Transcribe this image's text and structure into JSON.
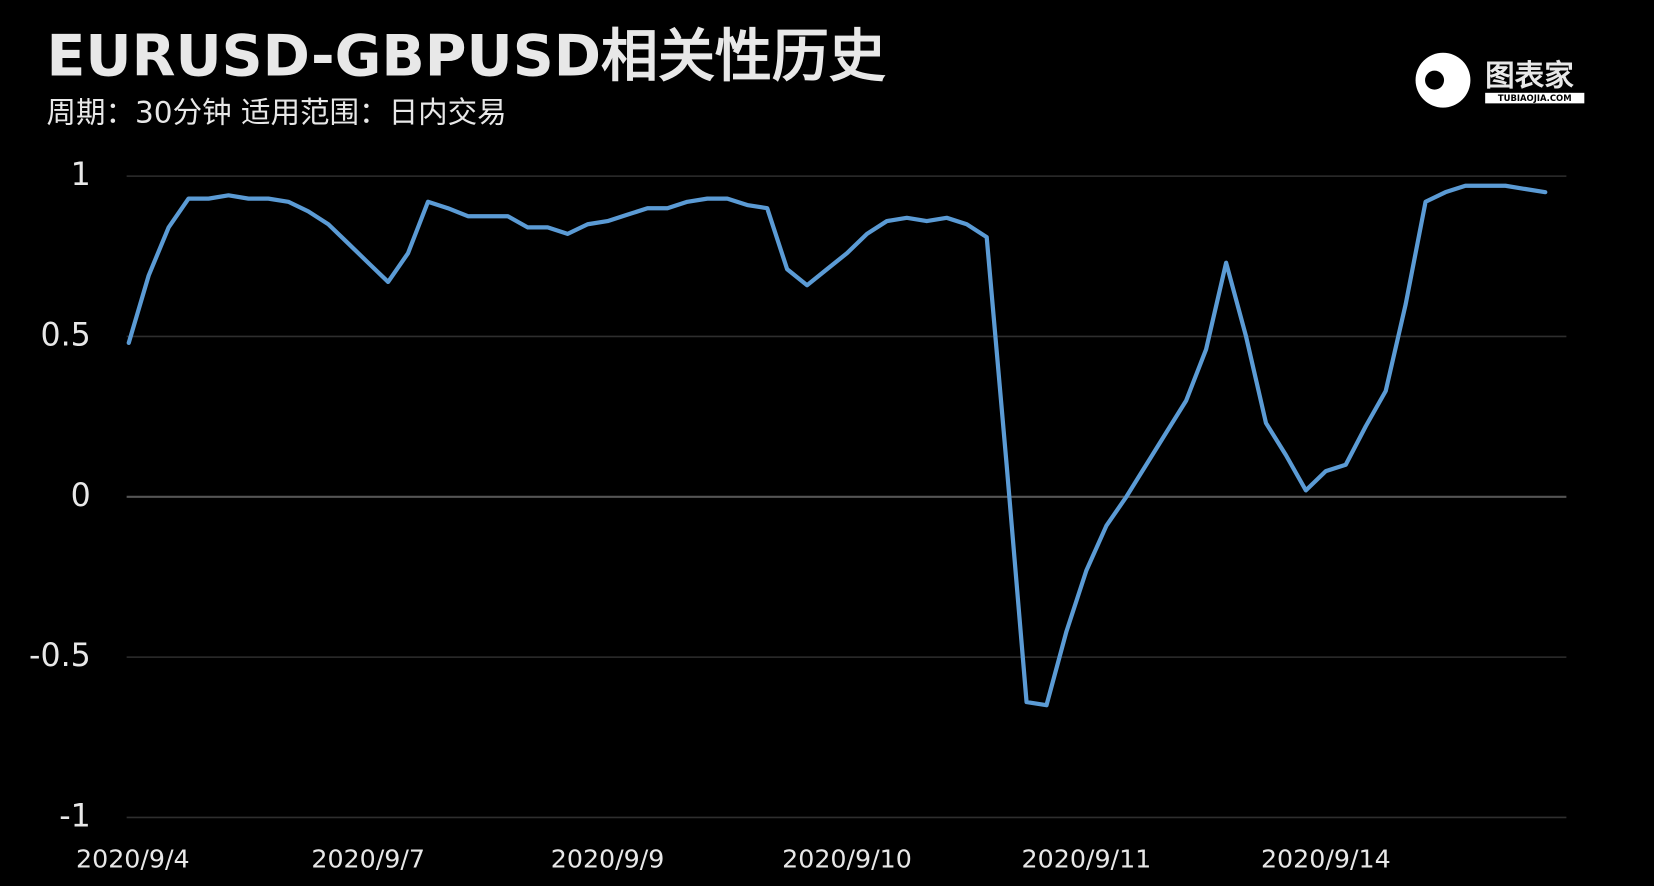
{
  "chart_data": {
    "type": "line",
    "title": "EURUSD-GBPUSD相关性历史",
    "subtitle": "周期：30分钟  适用范围：日内交易",
    "categories": [
      "2020/9/4",
      null,
      null,
      null,
      null,
      null,
      null,
      null,
      null,
      null,
      null,
      null,
      "2020/9/7",
      null,
      null,
      null,
      null,
      null,
      null,
      null,
      null,
      null,
      null,
      null,
      "2020/9/9",
      null,
      null,
      null,
      null,
      null,
      null,
      null,
      null,
      null,
      null,
      null,
      "2020/9/10",
      null,
      null,
      null,
      null,
      null,
      null,
      null,
      null,
      null,
      null,
      null,
      "2020/9/11",
      null,
      null,
      null,
      null,
      null,
      null,
      null,
      null,
      null,
      null,
      null,
      "2020/9/14",
      null,
      null,
      null,
      null,
      null,
      null,
      null,
      null,
      null,
      null,
      null
    ],
    "series": [
      {
        "name": "EURUSD-GBPUSD",
        "color": "#5b9bd5",
        "values": [
          0.48,
          0.69,
          0.84,
          0.93,
          0.93,
          0.94,
          0.93,
          0.93,
          0.92,
          0.89,
          0.85,
          0.79,
          0.73,
          0.67,
          0.76,
          0.92,
          0.9,
          0.875,
          0.875,
          0.875,
          0.84,
          0.84,
          0.82,
          0.85,
          0.86,
          0.88,
          0.9,
          0.9,
          0.92,
          0.93,
          0.93,
          0.91,
          0.9,
          0.71,
          0.66,
          0.71,
          0.76,
          0.82,
          0.86,
          0.87,
          0.86,
          0.87,
          0.85,
          0.81,
          0.1,
          -0.64,
          -0.65,
          -0.42,
          -0.23,
          -0.09,
          0.0,
          0.1,
          0.2,
          0.3,
          0.46,
          0.73,
          0.5,
          0.23,
          0.13,
          0.02,
          0.08,
          0.1,
          0.22,
          0.33,
          0.6,
          0.92,
          0.95,
          0.97,
          0.97,
          0.97,
          0.96,
          0.95
        ]
      }
    ],
    "ylim": [
      -1,
      1
    ],
    "yticks": [
      -1,
      -0.5,
      0,
      0.5,
      1
    ],
    "grid": true
  },
  "logo": {
    "name": "图表家",
    "site": "TUBIAOJIA.COM"
  }
}
